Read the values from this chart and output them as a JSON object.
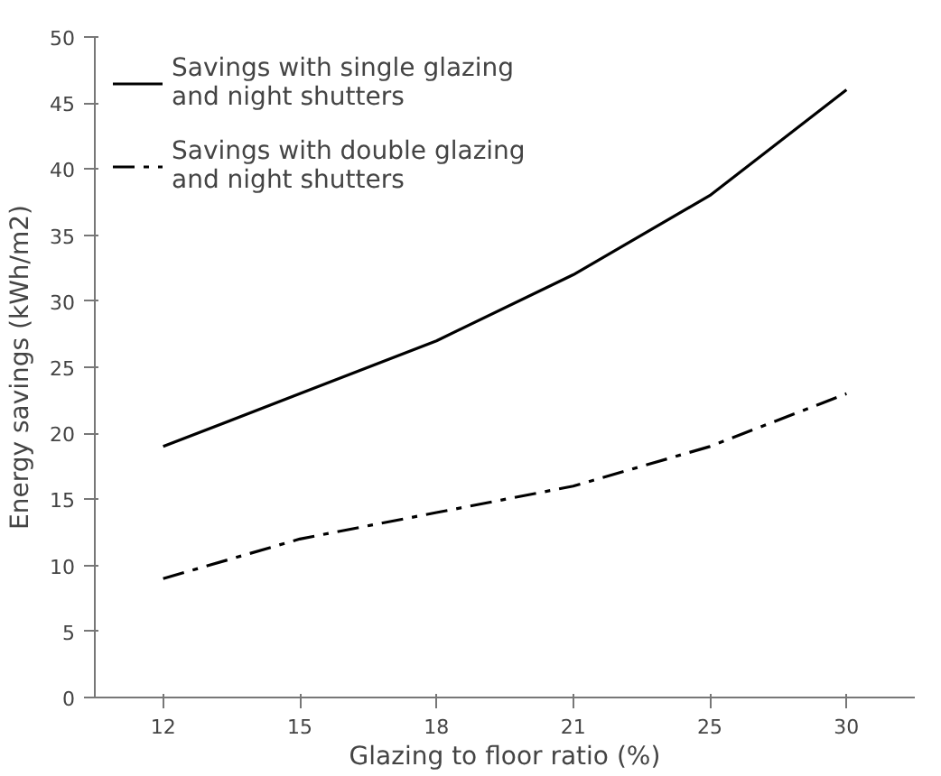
{
  "chart_data": {
    "type": "line",
    "xlabel": "Glazing to floor ratio (%)",
    "ylabel": "Energy savings (kWh/m2)",
    "categories": [
      "12",
      "15",
      "18",
      "21",
      "25",
      "30"
    ],
    "series": [
      {
        "name": "Savings with single glazing and night shutters",
        "color": "#000000",
        "line_style": "solid",
        "values": [
          19,
          23,
          27,
          32,
          38,
          46
        ]
      },
      {
        "name": "Savings with double glazing and night shutters",
        "color": "#000000",
        "line_style": "dashed",
        "values": [
          9,
          12,
          14,
          16,
          19,
          23
        ]
      }
    ],
    "ylim": [
      0,
      50
    ],
    "yticks": [
      0,
      5,
      10,
      15,
      20,
      25,
      30,
      35,
      40,
      45,
      50
    ],
    "grid": false,
    "legend": "top left",
    "marker": "none"
  }
}
